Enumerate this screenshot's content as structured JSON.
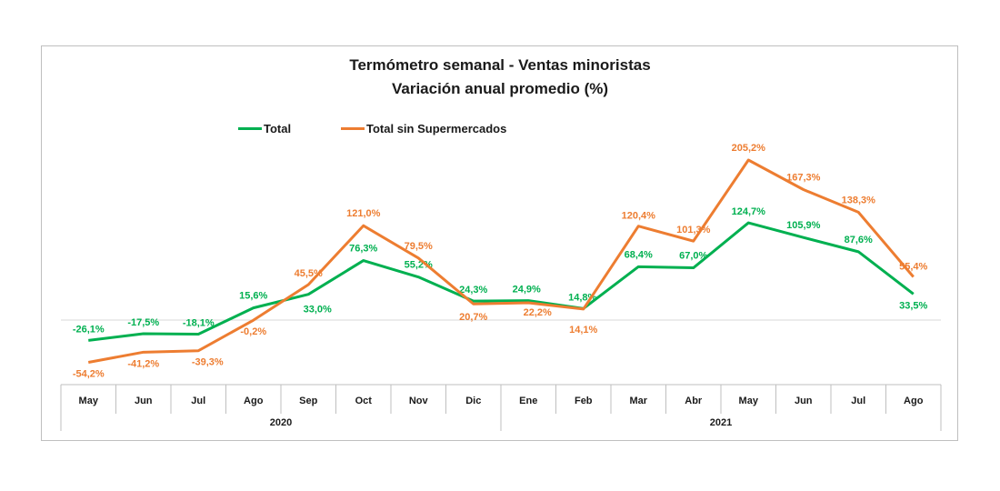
{
  "title": "Termómetro semanal - Ventas minoristas",
  "subtitle": "Variación anual promedio (%)",
  "legend": {
    "total": "Total",
    "sin_super": "Total sin Supermercados"
  },
  "colors": {
    "total": "#00b050",
    "sin_super": "#ed7d31",
    "axis": "#bfbfbf",
    "text": "#1a1a1a"
  },
  "chart_data": {
    "type": "line",
    "title": "Termómetro semanal - Ventas minoristas",
    "subtitle": "Variación anual promedio (%)",
    "categories": [
      "May",
      "Jun",
      "Jul",
      "Ago",
      "Sep",
      "Oct",
      "Nov",
      "Dic",
      "Ene",
      "Feb",
      "Mar",
      "Abr",
      "May",
      "Jun",
      "Jul",
      "Ago"
    ],
    "year_groups": [
      {
        "label": "2020",
        "count": 8
      },
      {
        "label": "2021",
        "count": 8
      }
    ],
    "series": [
      {
        "name": "Total",
        "key": "total",
        "values": [
          -26.1,
          -17.5,
          -18.1,
          15.6,
          33.0,
          76.3,
          55.2,
          24.3,
          24.9,
          14.8,
          68.4,
          67.0,
          124.7,
          105.9,
          87.6,
          33.5
        ],
        "labels": [
          "-26,1%",
          "-17,5%",
          "-18,1%",
          "15,6%",
          "33,0%",
          "76,3%",
          "55,2%",
          "24,3%",
          "24,9%",
          "14,8%",
          "68,4%",
          "67,0%",
          "124,7%",
          "105,9%",
          "87,6%",
          "33,5%"
        ]
      },
      {
        "name": "Total sin Supermercados",
        "key": "sin_super",
        "values": [
          -54.2,
          -41.2,
          -39.3,
          -0.2,
          45.5,
          121.0,
          79.5,
          20.7,
          22.2,
          14.1,
          120.4,
          101.3,
          205.2,
          167.3,
          138.3,
          55.4
        ],
        "labels": [
          "-54,2%",
          "-41,2%",
          "-39,3%",
          "-0,2%",
          "45,5%",
          "121,0%",
          "79,5%",
          "20,7%",
          "22,2%",
          "14,1%",
          "120,4%",
          "101,3%",
          "205,2%",
          "167,3%",
          "138,3%",
          "55,4%"
        ]
      }
    ],
    "ylim": [
      -60,
      210
    ],
    "grid": false,
    "legend_position": "top-left"
  }
}
